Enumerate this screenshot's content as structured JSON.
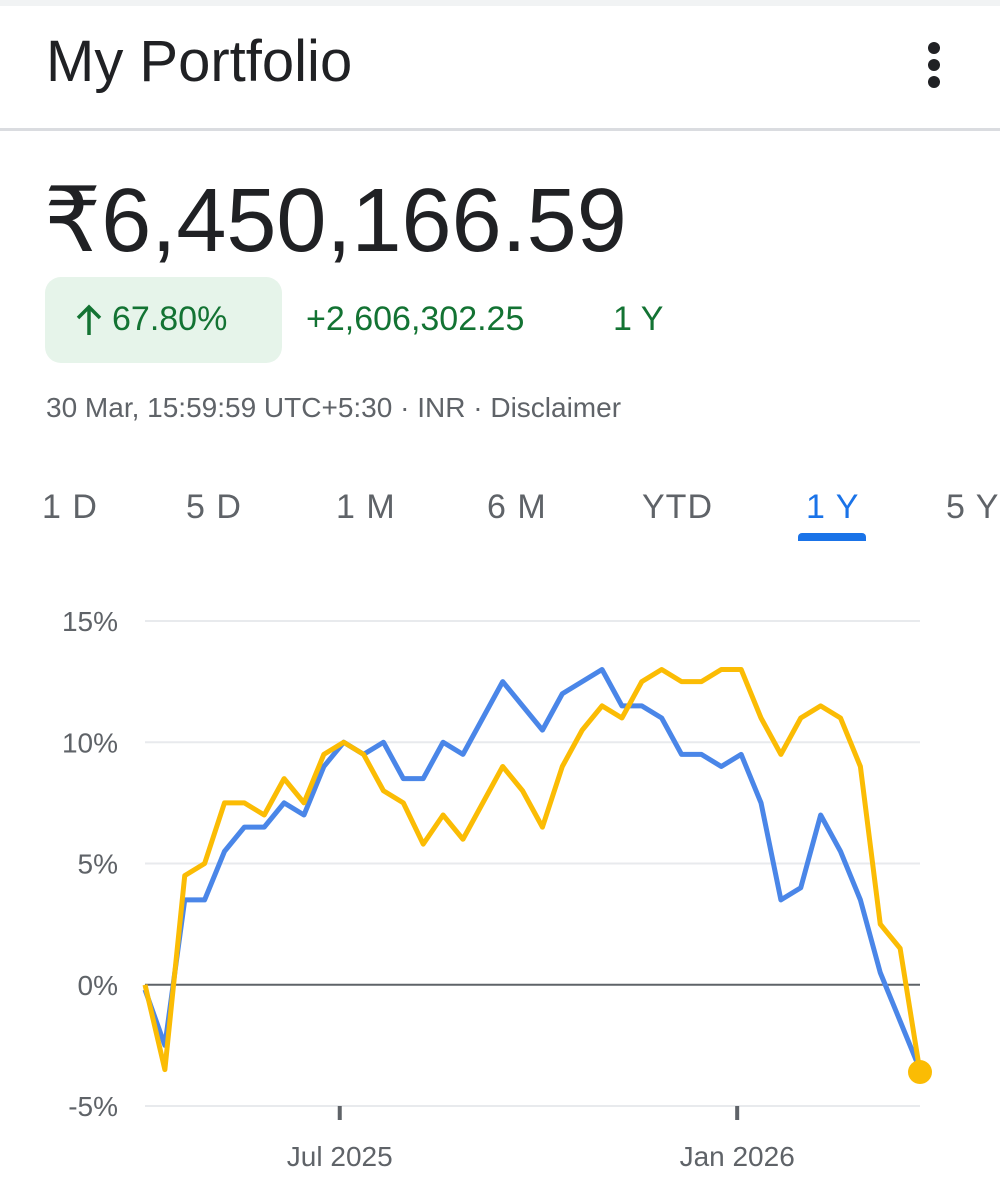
{
  "header": {
    "title": "My Portfolio"
  },
  "summary": {
    "value": "₹6,450,166.59",
    "change_percent": "67.80%",
    "change_amount": "+2,606,302.25",
    "period": "1 Y",
    "timestamp": "30 Mar, 15:59:59 UTC+5:30",
    "currency": "INR",
    "disclaimer": "Disclaimer"
  },
  "tabs": {
    "items": [
      "1 D",
      "5 D",
      "1 M",
      "6 M",
      "YTD",
      "1 Y",
      "5 Y"
    ],
    "selected": 5
  },
  "chart_data": {
    "type": "line",
    "x": [
      0,
      1,
      2,
      3,
      4,
      5,
      6,
      7,
      8,
      9,
      10,
      11,
      12,
      13,
      14,
      15,
      16,
      17,
      18,
      19,
      20,
      21,
      22,
      23,
      24,
      25,
      26,
      27,
      28,
      29,
      30,
      31,
      32,
      33,
      34,
      35,
      36,
      37,
      38,
      39
    ],
    "xlim": [
      0,
      39
    ],
    "xticks": [
      {
        "value": 9.8,
        "label": "Jul 2025"
      },
      {
        "value": 29.8,
        "label": "Jan 2026"
      }
    ],
    "ylim": [
      -5,
      15
    ],
    "yticks": [
      {
        "value": -5,
        "label": "-5%"
      },
      {
        "value": 0,
        "label": "0%"
      },
      {
        "value": 5,
        "label": "5%"
      },
      {
        "value": 10,
        "label": "10%"
      },
      {
        "value": 15,
        "label": "15%"
      }
    ],
    "grid": true,
    "series": [
      {
        "color": "#4a86e8",
        "values": [
          -0.2,
          -2.5,
          3.5,
          3.5,
          5.5,
          6.5,
          6.5,
          7.5,
          7,
          9,
          10,
          9.5,
          10,
          8.5,
          8.5,
          10,
          9.5,
          11,
          12.5,
          11.5,
          10.5,
          12,
          12.5,
          13,
          11.5,
          11.5,
          11,
          9.5,
          9.5,
          9,
          9.5,
          7.5,
          3.5,
          4,
          7,
          5.5,
          3.5,
          0.5,
          -1.5,
          -3.5
        ]
      },
      {
        "color": "#fbbc04",
        "values": [
          0,
          -3.5,
          4.5,
          5,
          7.5,
          7.5,
          7,
          8.5,
          7.5,
          9.5,
          10,
          9.5,
          8,
          7.5,
          5.8,
          7,
          6,
          7.5,
          9,
          8,
          6.5,
          9,
          10.5,
          11.5,
          11,
          12.5,
          13,
          12.5,
          12.5,
          13,
          13,
          11,
          9.5,
          11,
          11.5,
          11,
          9,
          2.5,
          1.5,
          -3.6
        ]
      }
    ]
  }
}
